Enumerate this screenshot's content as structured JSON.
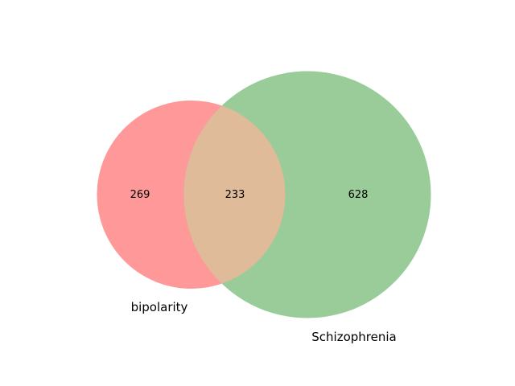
{
  "diagram": {
    "type": "venn2",
    "sets": [
      {
        "key": "a",
        "label": "bipolarity",
        "color": "#ff9999"
      },
      {
        "key": "b",
        "label": "Schizophrenia",
        "color": "#99cc99"
      }
    ],
    "regions": {
      "a_only": "269",
      "both": "233",
      "b_only": "628"
    },
    "overlap_color": "#dfbb99"
  }
}
